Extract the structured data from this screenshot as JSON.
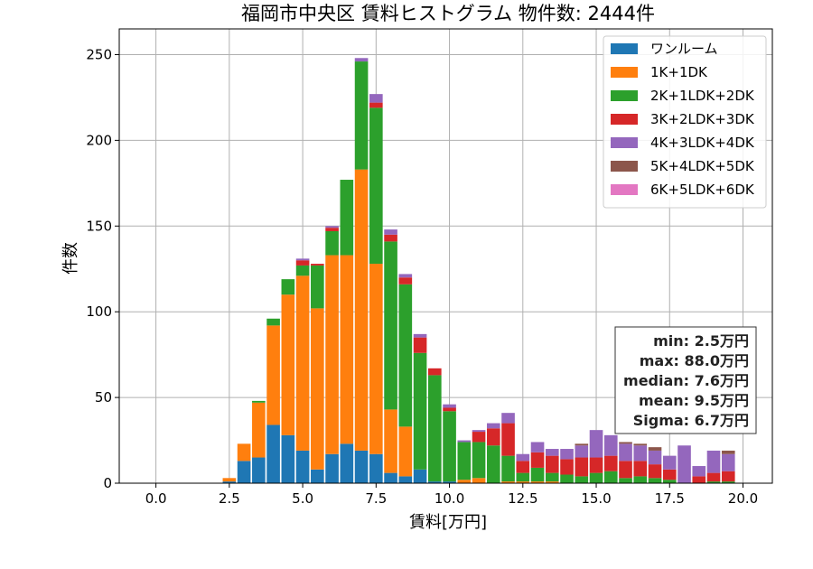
{
  "chart_data": {
    "type": "bar",
    "stacked": true,
    "title": "福岡市中央区 賃料ヒストグラム 物件数: 2444件",
    "xlabel": "賃料[万円]",
    "ylabel": "件数",
    "xlim": [
      -1.25,
      21.0
    ],
    "ylim": [
      0,
      265
    ],
    "xticks": [
      0,
      2.5,
      5,
      7.5,
      10,
      12.5,
      15,
      17.5,
      20
    ],
    "xtick_labels": [
      "0.0",
      "2.5",
      "5.0",
      "7.5",
      "10.0",
      "12.5",
      "15.0",
      "17.5",
      "20.0"
    ],
    "yticks": [
      0,
      50,
      100,
      150,
      200,
      250
    ],
    "ytick_labels": [
      "0",
      "50",
      "100",
      "150",
      "200",
      "250"
    ],
    "grid": true,
    "legend_position": "top-right",
    "bin_width": 0.5,
    "bar_width": 0.45,
    "x": [
      2.5,
      3.0,
      3.5,
      4.0,
      4.5,
      5.0,
      5.5,
      6.0,
      6.5,
      7.0,
      7.5,
      8.0,
      8.5,
      9.0,
      9.5,
      10.0,
      10.5,
      11.0,
      11.5,
      12.0,
      12.5,
      13.0,
      13.5,
      14.0,
      14.5,
      15.0,
      15.5,
      16.0,
      16.5,
      17.0,
      17.5,
      18.0,
      18.5,
      19.0,
      19.5
    ],
    "series": [
      {
        "name": "ワンルーム",
        "color": "#1f77b4",
        "values": [
          1,
          13,
          15,
          34,
          28,
          19,
          8,
          17,
          23,
          19,
          17,
          6,
          4,
          8,
          1,
          1,
          0,
          0,
          0,
          0,
          0,
          0,
          0,
          0,
          0,
          0,
          0,
          0,
          0,
          0,
          0,
          0,
          0,
          0,
          0
        ]
      },
      {
        "name": "1K+1DK",
        "color": "#ff7f0e",
        "values": [
          2,
          10,
          32,
          58,
          82,
          102,
          94,
          116,
          110,
          164,
          111,
          37,
          29,
          0,
          0,
          0,
          2,
          3,
          0,
          1,
          1,
          1,
          1,
          0,
          0,
          0,
          0,
          0,
          0,
          0,
          0,
          0,
          0,
          0,
          0
        ]
      },
      {
        "name": "2K+1LDK+2DK",
        "color": "#2ca02c",
        "values": [
          0,
          0,
          1,
          4,
          9,
          6,
          25,
          14,
          44,
          63,
          91,
          98,
          83,
          68,
          62,
          41,
          22,
          21,
          22,
          15,
          5,
          8,
          5,
          5,
          4,
          6,
          7,
          3,
          4,
          3,
          2,
          0,
          0,
          1,
          1
        ]
      },
      {
        "name": "3K+2LDK+3DK",
        "color": "#d62728",
        "values": [
          0,
          0,
          0,
          0,
          0,
          3,
          1,
          2,
          0,
          0,
          3,
          4,
          4,
          9,
          4,
          2,
          0,
          6,
          10,
          19,
          7,
          9,
          10,
          9,
          11,
          9,
          9,
          10,
          9,
          8,
          6,
          0,
          4,
          5,
          6
        ]
      },
      {
        "name": "4K+3LDK+4DK",
        "color": "#9467bd",
        "values": [
          0,
          0,
          0,
          0,
          0,
          1,
          0,
          1,
          0,
          2,
          5,
          3,
          2,
          2,
          0,
          2,
          1,
          1,
          3,
          6,
          4,
          6,
          4,
          6,
          7,
          16,
          12,
          10,
          9,
          8,
          8,
          22,
          6,
          13,
          10
        ]
      },
      {
        "name": "5K+4LDK+5DK",
        "color": "#8c564b",
        "values": [
          0,
          0,
          0,
          0,
          0,
          0,
          0,
          0,
          0,
          0,
          0,
          0,
          0,
          0,
          0,
          0,
          0,
          0,
          0,
          0,
          0,
          0,
          0,
          0,
          1,
          0,
          0,
          1,
          1,
          2,
          0,
          0,
          0,
          0,
          2
        ]
      },
      {
        "name": "6K+5LDK+6DK",
        "color": "#e377c2",
        "values": [
          0,
          0,
          0,
          0,
          0,
          0,
          0,
          0,
          0,
          0,
          0,
          0,
          0,
          0,
          0,
          0,
          0,
          0,
          0,
          0,
          0,
          0,
          0,
          0,
          0,
          0,
          0,
          0,
          0,
          0,
          0,
          0,
          0,
          0,
          0
        ]
      }
    ],
    "stats": [
      "min: 2.5万円",
      "max: 88.0万円",
      "median: 7.6万円",
      "mean: 9.5万円",
      "Sigma: 6.7万円"
    ]
  }
}
